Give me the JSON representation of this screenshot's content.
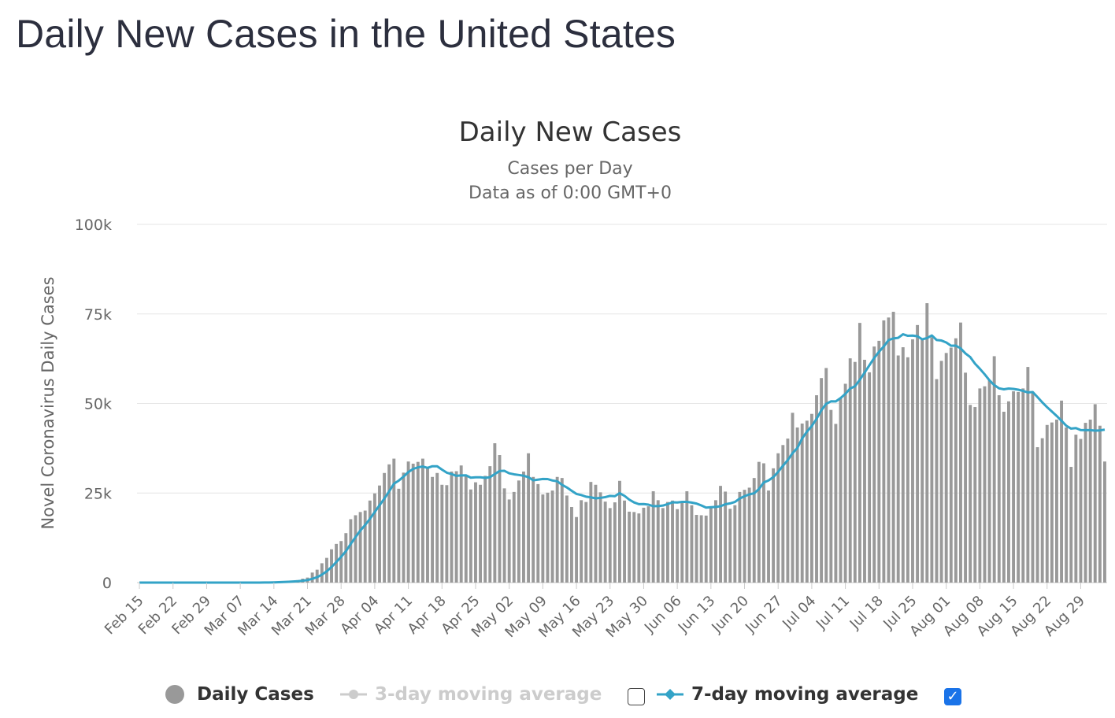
{
  "page_title": "Daily New Cases in the United States",
  "chart_data": {
    "type": "bar",
    "title": "Daily New Cases",
    "subtitle_line1": "Cases per Day",
    "subtitle_line2": "Data as of 0:00 GMT+0",
    "ylabel": "Novel Coronavirus Daily Cases",
    "ylim": [
      0,
      100000
    ],
    "y_ticks": [
      "0",
      "25k",
      "50k",
      "75k",
      "100k"
    ],
    "start_date": "2020-02-15",
    "x_tick_labels": [
      "Feb 15",
      "Feb 22",
      "Feb 29",
      "Mar 07",
      "Mar 14",
      "Mar 21",
      "Mar 28",
      "Apr 04",
      "Apr 11",
      "Apr 18",
      "Apr 25",
      "May 02",
      "May 09",
      "May 16",
      "May 23",
      "May 30",
      "Jun 06",
      "Jun 13",
      "Jun 20",
      "Jun 27",
      "Jul 04",
      "Jul 11",
      "Jul 18",
      "Jul 25",
      "Aug 01",
      "Aug 08",
      "Aug 15",
      "Aug 22",
      "Aug 29"
    ],
    "series": [
      {
        "name": "Daily Cases",
        "type": "bar",
        "color": "#999999",
        "values": [
          0,
          0,
          0,
          0,
          0,
          0,
          0,
          0,
          0,
          0,
          0,
          0,
          0,
          0,
          0,
          0,
          0,
          0,
          0,
          0,
          0,
          0,
          0,
          0,
          0,
          0,
          100,
          100,
          200,
          300,
          400,
          500,
          500,
          700,
          1100,
          1400,
          2800,
          3600,
          5400,
          6900,
          9300,
          10800,
          11600,
          13800,
          17700,
          18800,
          19700,
          20100,
          22900,
          24900,
          27100,
          30600,
          33000,
          34600,
          26200,
          30700,
          33800,
          33200,
          33700,
          34600,
          31900,
          29500,
          30600,
          27300,
          27200,
          31000,
          31100,
          32700,
          29700,
          26000,
          28000,
          27300,
          29800,
          32500,
          38900,
          35600,
          26300,
          23200,
          25300,
          28500,
          31000,
          36100,
          29500,
          27500,
          24600,
          25100,
          25700,
          29500,
          29200,
          24300,
          21100,
          18300,
          23000,
          22500,
          28100,
          27300,
          25200,
          22600,
          20800,
          22400,
          28400,
          22900,
          19800,
          19700,
          19300,
          20900,
          21300,
          25500,
          23000,
          20800,
          22500,
          22900,
          20500,
          22500,
          25500,
          21600,
          18900,
          18800,
          18700,
          21300,
          23000,
          27000,
          25400,
          20600,
          21600,
          25300,
          25900,
          26500,
          29200,
          33700,
          33300,
          25700,
          31900,
          36100,
          38400,
          40200,
          47400,
          43300,
          44400,
          45200,
          47100,
          52300,
          57100,
          59900,
          48200,
          44300,
          51600,
          55500,
          62600,
          61600,
          72500,
          62200,
          58700,
          65900,
          67500,
          73200,
          74000,
          75600,
          63400,
          65700,
          62900,
          67900,
          71900,
          68000,
          78000,
          68500,
          56800,
          61900,
          64100,
          65600,
          68200,
          72600,
          58600,
          49600,
          49000,
          54200,
          54800,
          56500,
          63200,
          52300,
          47700,
          50600,
          53400,
          53200,
          54200,
          60200,
          53100,
          37800,
          40300,
          44000,
          44700,
          45500,
          50800,
          43300,
          32300,
          41300,
          40100,
          44600,
          45500,
          49800,
          43800,
          33800
        ]
      },
      {
        "name": "3-day moving average",
        "type": "line",
        "visible": false,
        "color": "#cccccc"
      },
      {
        "name": "7-day moving average",
        "type": "line",
        "visible": true,
        "color": "#33a3c7"
      }
    ],
    "legend_position": "bottom"
  },
  "legend": {
    "daily_cases": "Daily Cases",
    "three_day": "3-day moving average",
    "seven_day": "7-day moving average",
    "checkmark": "✓"
  }
}
